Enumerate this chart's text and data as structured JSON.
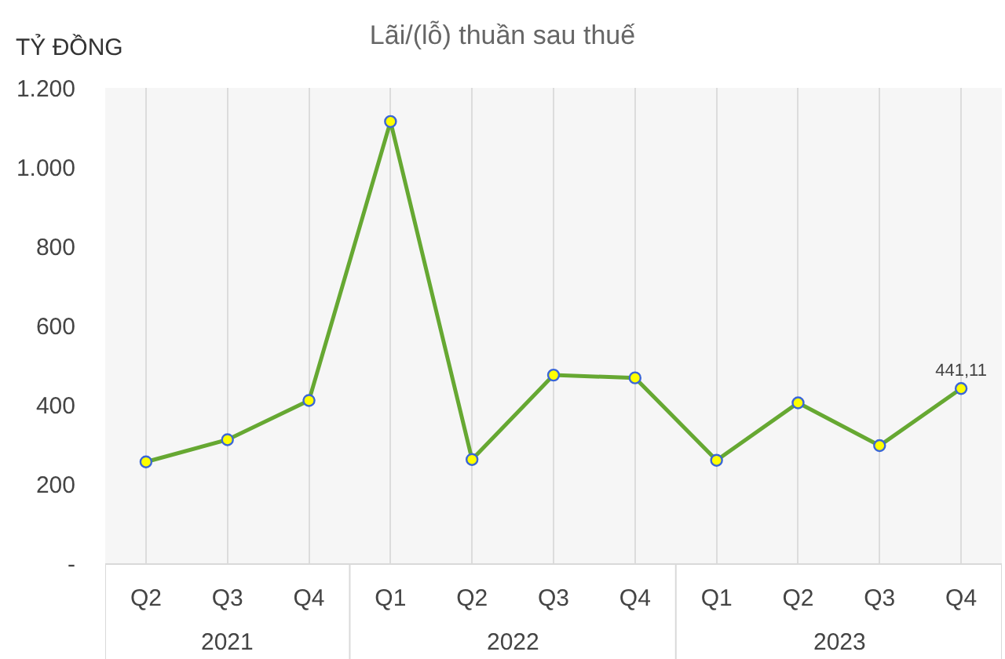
{
  "chart_data": {
    "type": "line",
    "title": "Lãi/(lỗ) thuần sau thuế",
    "ylabel": "TỶ ĐỒNG",
    "categories": [
      "Q2",
      "Q3",
      "Q4",
      "Q1",
      "Q2",
      "Q3",
      "Q4",
      "Q1",
      "Q2",
      "Q3",
      "Q4"
    ],
    "annotations": [
      "2021",
      "2022",
      "2023"
    ],
    "series": [
      {
        "color": "#66a832",
        "values": [
          256,
          312,
          411,
          1115,
          262,
          475,
          468,
          260,
          405,
          297,
          441.11
        ],
        "value_labels": [
          null,
          null,
          null,
          null,
          null,
          null,
          null,
          null,
          null,
          null,
          "441,11"
        ]
      }
    ],
    "ylim": [
      0,
      1200
    ],
    "yticks": [
      {
        "value": 0,
        "label": "-"
      },
      200,
      400,
      600,
      800,
      {
        "value": 1000,
        "label": "1.000"
      },
      {
        "value": 1200,
        "label": "1.200"
      }
    ],
    "grid": "x",
    "marker": "circle",
    "line_style": "solid"
  }
}
